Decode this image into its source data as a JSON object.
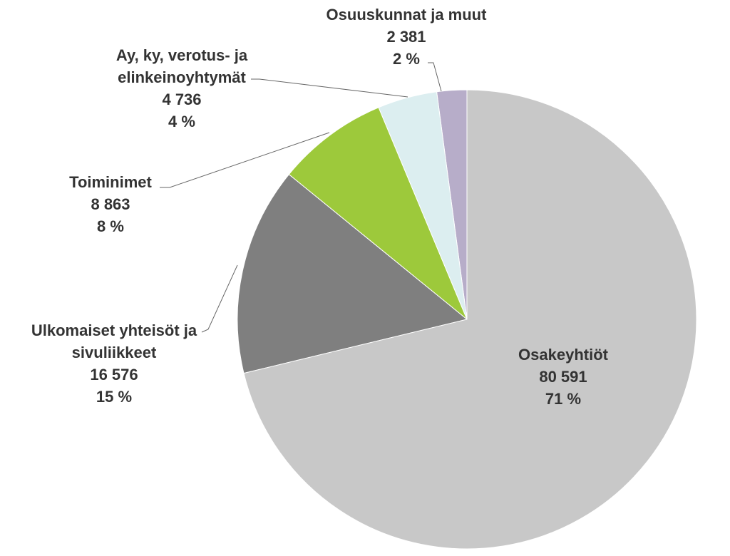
{
  "chart_data": {
    "type": "pie",
    "categories": [
      "Osakeyhtiöt",
      "Ulkomaiset yhteisöt ja sivuliikkeet",
      "Toiminimet",
      "Ay, ky, verotus- ja elinkeinoyhtymät",
      "Osuuskunnat ja muut"
    ],
    "values": [
      80591,
      16576,
      8863,
      4736,
      2381
    ],
    "value_labels": [
      "80 591",
      "16 576",
      "8 863",
      "4 736",
      "2 381"
    ],
    "percent_labels": [
      "71 %",
      "15 %",
      "8 %",
      "4 %",
      "2 %"
    ],
    "colors": [
      "#c8c8c8",
      "#7f7f7f",
      "#9dc93b",
      "#dceef0",
      "#b7adc9"
    ]
  }
}
